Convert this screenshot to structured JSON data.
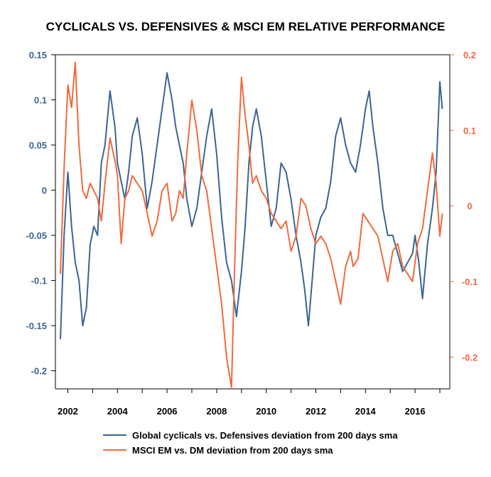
{
  "chart_data": {
    "type": "line",
    "title": "CYCLICALS VS. DEFENSIVES & MSCI EM RELATIVE PERFORMANCE",
    "x_ticks": [
      "2002",
      "2004",
      "2006",
      "2008",
      "2010",
      "2012",
      "2014",
      "2016"
    ],
    "xlim": [
      2001.5,
      2017.4
    ],
    "y_left": {
      "ylim": [
        -0.22,
        0.15
      ],
      "ticks": [
        "0.15",
        "0.1",
        "0.05",
        "0",
        "-0.05",
        "-0.1",
        "-0.15",
        "-0.2"
      ],
      "tick_values": [
        0.15,
        0.1,
        0.05,
        0,
        -0.05,
        -0.1,
        -0.15,
        -0.2
      ],
      "color": "#3a6494"
    },
    "y_right": {
      "ylim": [
        -0.242,
        0.2
      ],
      "ticks": [
        "0.2",
        "0.1",
        "0",
        "-0.1",
        "-0.2"
      ],
      "tick_values": [
        0.2,
        0.1,
        0,
        -0.1,
        -0.2
      ],
      "color": "#ee6a3e"
    },
    "series": [
      {
        "name": "Global cyclicals vs. Defensives deviation from 200 days sma",
        "axis": "left",
        "color": "#3a6494",
        "x": [
          2001.7,
          2001.85,
          2002.0,
          2002.15,
          2002.3,
          2002.45,
          2002.6,
          2002.75,
          2002.9,
          2003.05,
          2003.2,
          2003.35,
          2003.5,
          2003.7,
          2003.9,
          2004.0,
          2004.15,
          2004.3,
          2004.45,
          2004.6,
          2004.8,
          2005.0,
          2005.2,
          2005.4,
          2005.6,
          2005.8,
          2006.0,
          2006.2,
          2006.35,
          2006.5,
          2006.65,
          2006.8,
          2007.0,
          2007.2,
          2007.4,
          2007.6,
          2007.8,
          2008.0,
          2008.2,
          2008.4,
          2008.6,
          2008.8,
          2009.0,
          2009.15,
          2009.3,
          2009.45,
          2009.6,
          2009.8,
          2010.0,
          2010.2,
          2010.4,
          2010.6,
          2010.8,
          2011.0,
          2011.2,
          2011.4,
          2011.55,
          2011.7,
          2011.85,
          2012.0,
          2012.2,
          2012.4,
          2012.6,
          2012.8,
          2013.0,
          2013.2,
          2013.4,
          2013.6,
          2013.8,
          2014.0,
          2014.15,
          2014.3,
          2014.5,
          2014.7,
          2014.9,
          2015.1,
          2015.3,
          2015.5,
          2015.7,
          2015.9,
          2016.0,
          2016.15,
          2016.3,
          2016.5,
          2016.7,
          2016.85,
          2017.0,
          2017.1
        ],
        "y": [
          -0.165,
          -0.05,
          0.02,
          -0.04,
          -0.08,
          -0.1,
          -0.15,
          -0.13,
          -0.06,
          -0.04,
          -0.05,
          0.03,
          0.05,
          0.11,
          0.07,
          0.03,
          0.01,
          -0.01,
          0.02,
          0.06,
          0.08,
          0.04,
          -0.02,
          0.01,
          0.05,
          0.09,
          0.13,
          0.1,
          0.07,
          0.05,
          0.03,
          -0.01,
          -0.04,
          -0.02,
          0.02,
          0.06,
          0.09,
          0.04,
          -0.03,
          -0.08,
          -0.1,
          -0.14,
          -0.09,
          -0.04,
          0.03,
          0.07,
          0.09,
          0.06,
          0.01,
          -0.04,
          -0.02,
          0.03,
          0.02,
          -0.01,
          -0.05,
          -0.08,
          -0.11,
          -0.15,
          -0.1,
          -0.05,
          -0.03,
          -0.02,
          0.01,
          0.06,
          0.08,
          0.05,
          0.03,
          0.02,
          0.05,
          0.09,
          0.11,
          0.07,
          0.03,
          -0.02,
          -0.05,
          -0.05,
          -0.07,
          -0.09,
          -0.08,
          -0.07,
          -0.05,
          -0.08,
          -0.12,
          -0.06,
          -0.02,
          0.02,
          0.12,
          0.09
        ]
      },
      {
        "name": "MSCI EM vs. DM deviation from 200 days sma",
        "axis": "right",
        "color": "#ee6a3e",
        "x": [
          2001.7,
          2001.85,
          2002.0,
          2002.15,
          2002.3,
          2002.45,
          2002.6,
          2002.75,
          2002.9,
          2003.05,
          2003.2,
          2003.35,
          2003.5,
          2003.7,
          2003.9,
          2004.0,
          2004.15,
          2004.3,
          2004.45,
          2004.6,
          2004.8,
          2005.0,
          2005.2,
          2005.4,
          2005.6,
          2005.8,
          2006.0,
          2006.2,
          2006.35,
          2006.5,
          2006.65,
          2006.8,
          2007.0,
          2007.2,
          2007.4,
          2007.6,
          2007.8,
          2008.0,
          2008.2,
          2008.4,
          2008.6,
          2008.75,
          2008.85,
          2009.0,
          2009.15,
          2009.3,
          2009.45,
          2009.6,
          2009.8,
          2010.0,
          2010.2,
          2010.4,
          2010.6,
          2010.8,
          2011.0,
          2011.2,
          2011.4,
          2011.6,
          2011.8,
          2012.0,
          2012.2,
          2012.4,
          2012.6,
          2012.8,
          2013.0,
          2013.2,
          2013.4,
          2013.5,
          2013.7,
          2013.9,
          2014.1,
          2014.3,
          2014.5,
          2014.7,
          2014.9,
          2015.1,
          2015.3,
          2015.5,
          2015.7,
          2015.9,
          2016.1,
          2016.3,
          2016.5,
          2016.7,
          2016.85,
          2017.0,
          2017.1
        ],
        "y": [
          -0.09,
          0.05,
          0.16,
          0.13,
          0.19,
          0.08,
          0.02,
          0.01,
          0.03,
          0.02,
          0.01,
          -0.02,
          0.03,
          0.09,
          0.06,
          0.04,
          -0.05,
          0.01,
          0.02,
          0.04,
          0.03,
          0.02,
          -0.01,
          -0.04,
          -0.02,
          0.02,
          0.03,
          -0.02,
          -0.01,
          0.02,
          0.01,
          0.07,
          0.14,
          0.1,
          0.04,
          0.02,
          -0.03,
          -0.08,
          -0.13,
          -0.2,
          -0.24,
          -0.05,
          0.06,
          0.17,
          0.12,
          0.08,
          0.03,
          0.04,
          0.02,
          0.01,
          -0.01,
          -0.02,
          -0.03,
          -0.02,
          -0.06,
          -0.04,
          0.01,
          0.0,
          -0.03,
          -0.05,
          -0.04,
          -0.05,
          -0.07,
          -0.1,
          -0.13,
          -0.08,
          -0.06,
          -0.08,
          -0.07,
          -0.01,
          -0.02,
          -0.03,
          -0.04,
          -0.07,
          -0.1,
          -0.06,
          -0.05,
          -0.08,
          -0.09,
          -0.1,
          -0.05,
          -0.03,
          0.02,
          0.07,
          0.03,
          -0.04,
          -0.01
        ]
      }
    ]
  }
}
